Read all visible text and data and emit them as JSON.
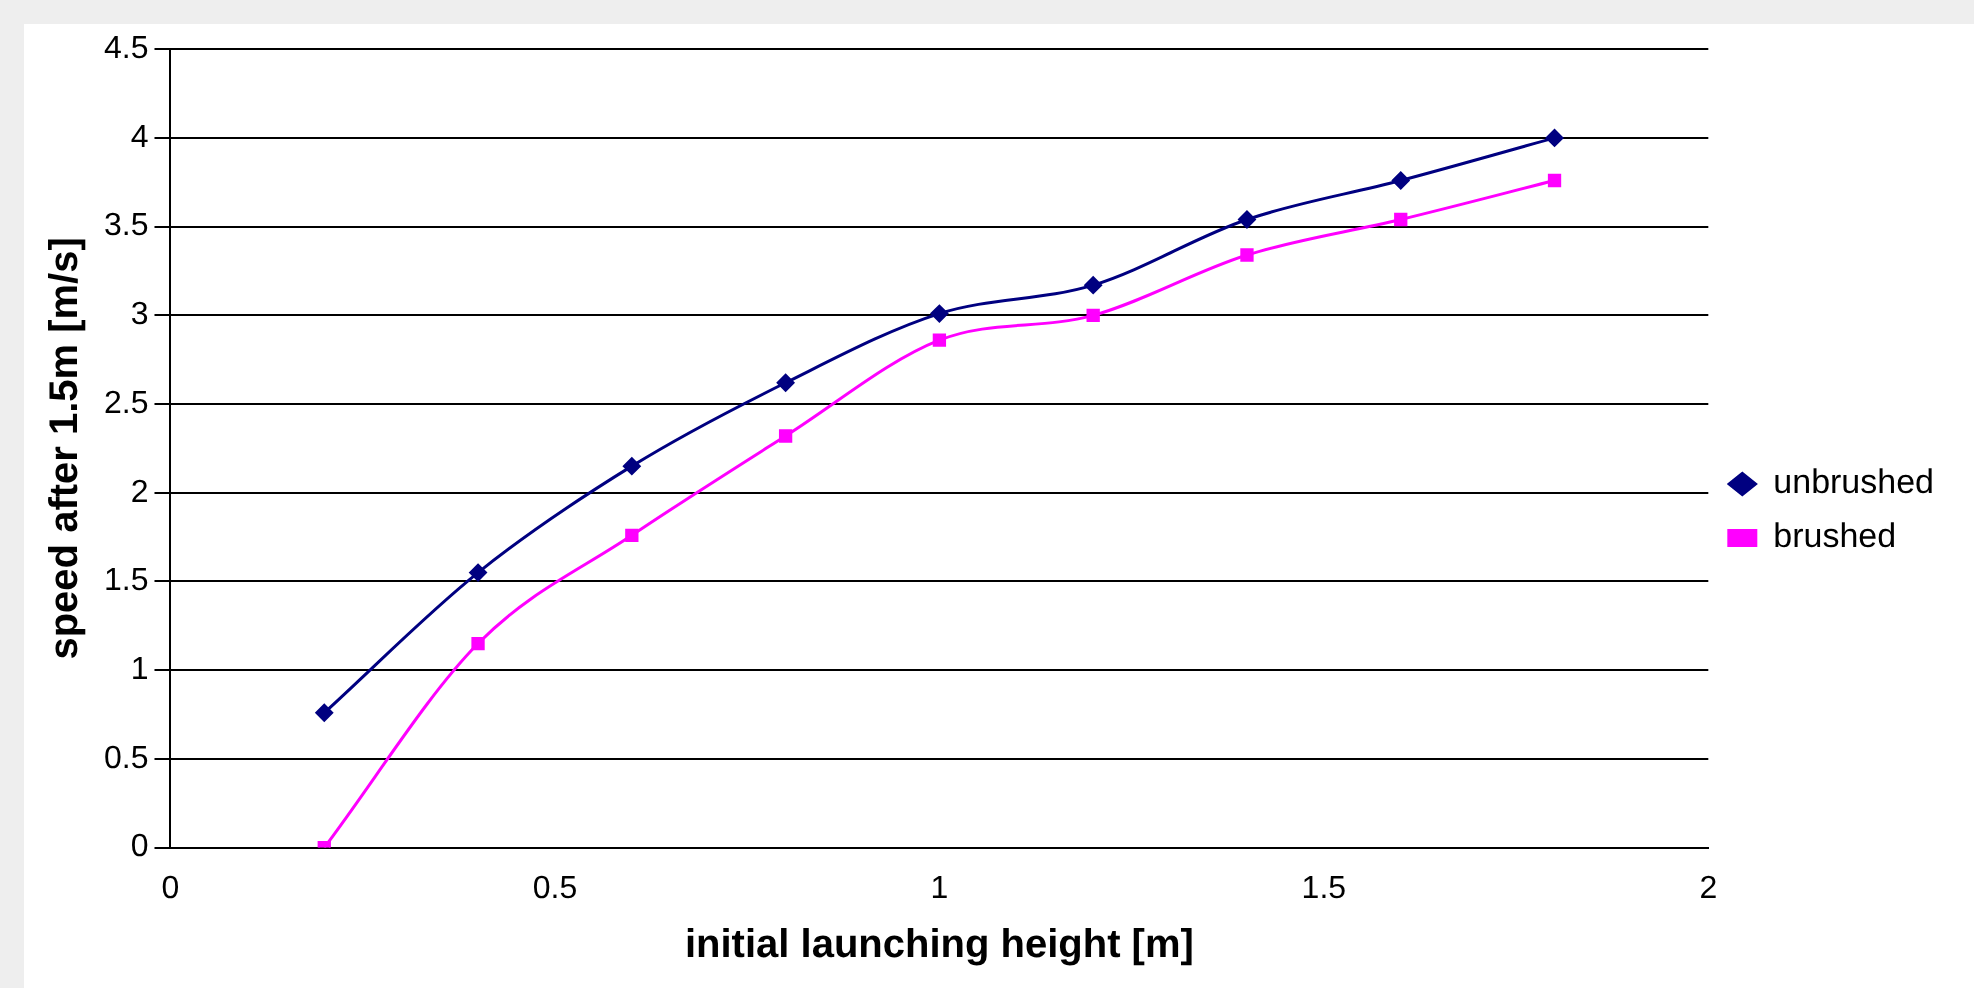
{
  "chart_data": {
    "type": "line",
    "xlabel": "initial launching height [m]",
    "ylabel": "speed after 1.5m [m/s]",
    "x": [
      0.2,
      0.4,
      0.6,
      0.8,
      1.0,
      1.2,
      1.4,
      1.6,
      1.8
    ],
    "series": [
      {
        "name": "unbrushed",
        "color": "#000080",
        "marker": "diamond",
        "values": [
          0.76,
          1.55,
          2.15,
          2.62,
          3.01,
          3.17,
          3.54,
          3.76,
          4.0
        ]
      },
      {
        "name": "brushed",
        "color": "#ff00ff",
        "marker": "square",
        "values": [
          0,
          1.15,
          1.76,
          2.32,
          2.86,
          3.0,
          3.34,
          3.54,
          3.76
        ]
      }
    ],
    "xlim": [
      0,
      2
    ],
    "xticks": [
      0,
      0.5,
      1,
      1.5,
      2
    ],
    "ylim": [
      0,
      4.5
    ],
    "yticks": [
      0,
      0.5,
      1,
      1.5,
      2,
      2.5,
      3,
      3.5,
      4,
      4.5
    ],
    "grid": "y",
    "legend": "right"
  }
}
